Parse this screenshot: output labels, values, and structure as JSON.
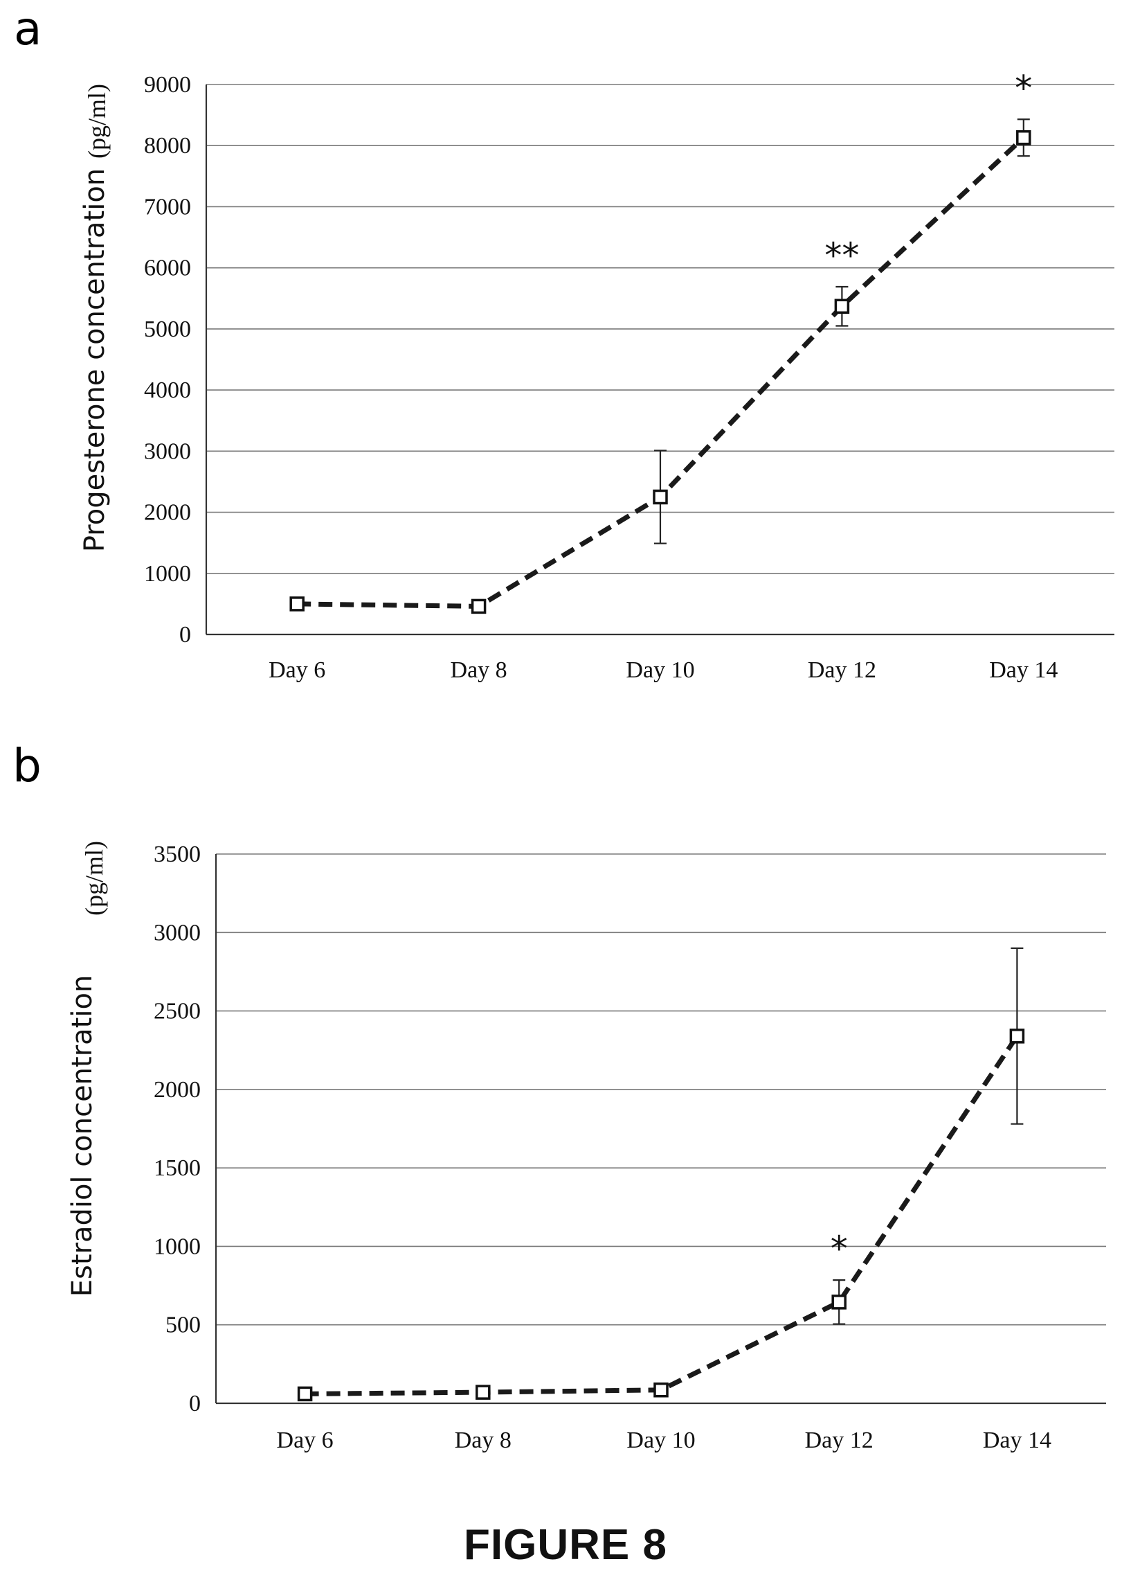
{
  "figure_caption": "FIGURE 8",
  "chart_data": [
    {
      "panel": "a",
      "type": "line",
      "title": "",
      "xlabel": "",
      "ylabel": "Progesterone concentration",
      "yunit": "(pg/ml)",
      "categories": [
        "Day 6",
        "Day 8",
        "Day 10",
        "Day 12",
        "Day 14"
      ],
      "values": [
        500,
        460,
        2250,
        5370,
        8130
      ],
      "error": [
        60,
        60,
        760,
        320,
        300
      ],
      "annotations": [
        "",
        "",
        "",
        "**",
        "*"
      ],
      "ylim": [
        0,
        9000
      ],
      "yticks": [
        0,
        1000,
        2000,
        3000,
        4000,
        5000,
        6000,
        7000,
        8000,
        9000
      ],
      "grid": true,
      "marker": "open-square",
      "line_style": "dashed",
      "color": "#1a1a1a"
    },
    {
      "panel": "b",
      "type": "line",
      "title": "",
      "xlabel": "",
      "ylabel": "Estradiol concentration",
      "yunit": "(pg/ml)",
      "categories": [
        "Day 6",
        "Day 8",
        "Day 10",
        "Day 12",
        "Day 14"
      ],
      "values": [
        60,
        70,
        85,
        645,
        2340
      ],
      "error": [
        20,
        20,
        20,
        140,
        560
      ],
      "annotations": [
        "",
        "",
        "",
        "*",
        ""
      ],
      "ylim": [
        0,
        3500
      ],
      "yticks": [
        0,
        500,
        1000,
        1500,
        2000,
        2500,
        3000,
        3500
      ],
      "grid": true,
      "marker": "open-square",
      "line_style": "dashed",
      "color": "#1a1a1a"
    }
  ]
}
